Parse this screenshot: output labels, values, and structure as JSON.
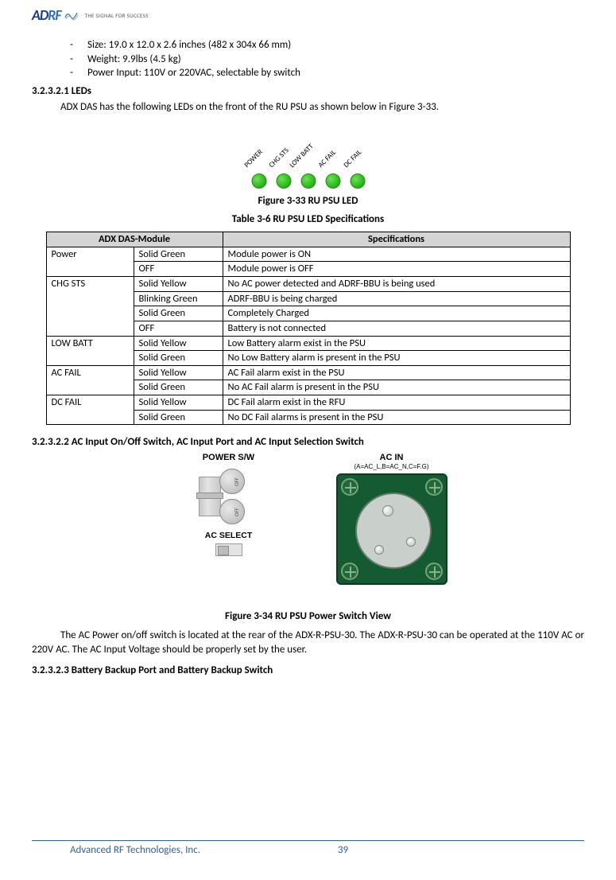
{
  "header": {
    "logo_left": "AD",
    "logo_right": "RF",
    "tagline": "THE SIGNAL FOR SUCCESS"
  },
  "bullets": [
    "Size: 19.0 x 12.0 x 2.6 inches (482 x 304x 66 mm)",
    "Weight: 9.9lbs (4.5 kg)",
    "Power Input: 110V or 220VAC, selectable by switch"
  ],
  "sec_leds_heading": "3.2.3.2.1    LEDs",
  "leds_intro": "ADX DAS has the following LEDs on the front of the RU PSU as shown below in Figure 3-33.",
  "led_labels": [
    "POWER",
    "CHG STS",
    "LOW BATT",
    "AC FAIL",
    "DC FAIL"
  ],
  "led_color": "#2fb91f",
  "fig33_caption": "Figure 3-33   RU PSU LED",
  "table_caption": "Table 3-6      RU PSU LED Specifications",
  "table": {
    "header": [
      "ADX DAS-Module",
      "Specifications"
    ],
    "groups": [
      {
        "name": "Power",
        "rows": [
          [
            "Solid Green",
            "Module power is ON"
          ],
          [
            "OFF",
            "Module power is OFF"
          ]
        ]
      },
      {
        "name": "CHG STS",
        "rows": [
          [
            "Solid Yellow",
            "No AC power detected and ADRF-BBU is being used"
          ],
          [
            "Blinking Green",
            "ADRF-BBU is being charged"
          ],
          [
            "Solid Green",
            "Completely Charged"
          ],
          [
            "OFF",
            "Battery is not connected"
          ]
        ]
      },
      {
        "name": "LOW BATT",
        "rows": [
          [
            "Solid Yellow",
            "Low Battery alarm exist in the PSU"
          ],
          [
            "Solid Green",
            "No Low Battery alarm is present in the PSU"
          ]
        ]
      },
      {
        "name": "AC FAIL",
        "rows": [
          [
            "Solid Yellow",
            "AC Fail alarm exist in the PSU"
          ],
          [
            "Solid Green",
            "No AC Fail alarm is present in the PSU"
          ]
        ]
      },
      {
        "name": "DC FAIL",
        "rows": [
          [
            "Solid Yellow",
            "DC Fail alarm exist in the RFU"
          ],
          [
            "Solid Green",
            "No DC Fail alarms is present in the PSU"
          ]
        ]
      }
    ]
  },
  "sec_acinput_heading": "3.2.3.2.2    AC Input On/Off Switch, AC Input Port and AC Input Selection Switch",
  "ps_labels": {
    "power_sw": "POWER S/W",
    "ac_in": "AC IN",
    "ac_in_sub": "(A=AC_L,B=AC_N,C=F.G)",
    "ac_select": "AC SELECT",
    "off": "OFF"
  },
  "fig34_caption": "Figure 3-34   RU PSU Power Switch View",
  "ac_para": "The AC Power on/off switch is located at the rear of the ADX-R-PSU-30. The ADX-R-PSU-30 can be operated at the 110V AC or 220V AC.  The AC Input Voltage should be properly set by the user.",
  "sec_batt_heading": "3.2.3.2.3    Battery Backup Port and Battery Backup Switch",
  "footer": {
    "company": "Advanced RF Technologies, Inc.",
    "page": "39"
  },
  "colors": {
    "header_th_bg": "#d4d4d4",
    "connector_green": "#145a32",
    "footer_blue": "#365f91"
  }
}
